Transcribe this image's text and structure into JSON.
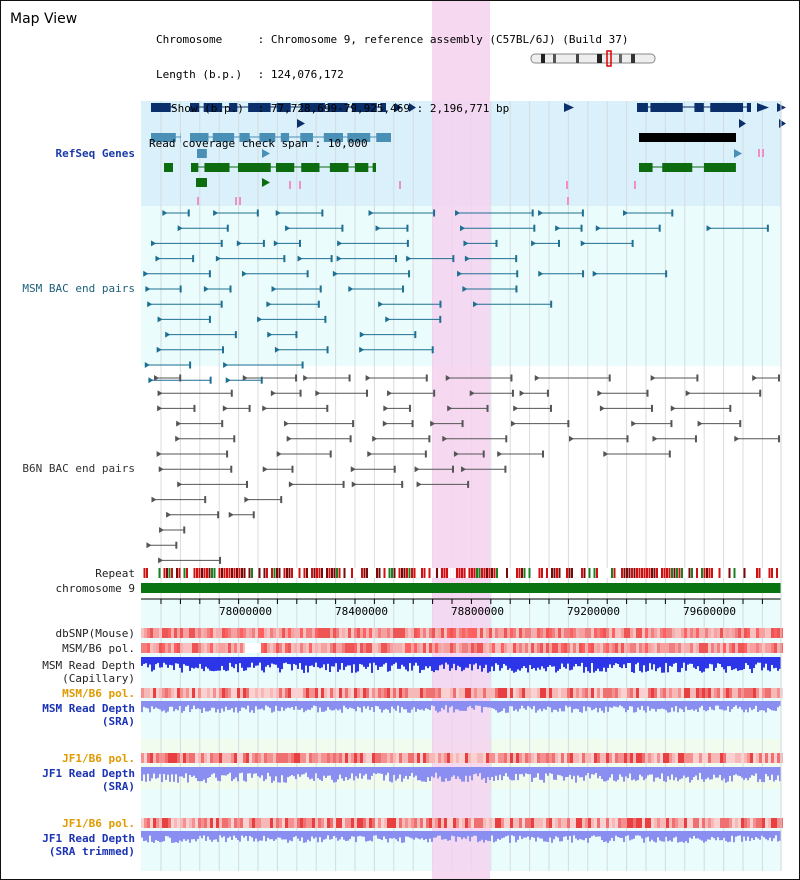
{
  "header": {
    "title": "Map View",
    "chromosome_key": "Chromosome",
    "chromosome_value": "Chromosome 9, reference assembly (C57BL/6J) (Build 37)",
    "length_key": "Length (b.p.)",
    "length_value": "124,076,172",
    "show_key": "Show (b.p.)",
    "show_value": "77,728,699-79,925,469 : 2,196,771 bp",
    "span_key": "Read coverage check span",
    "span_value": "10,000"
  },
  "tracks": {
    "refseq": "RefSeq Genes",
    "msm_bac": "MSM BAC end pairs",
    "b6n_bac": "B6N BAC end pairs",
    "repeat": "Repeat",
    "chromosome": "chromosome 9",
    "dbsnp": "dbSNP(Mouse)",
    "msm_b6_pol_1": "MSM/B6 pol.",
    "msm_read_depth_cap_1": "MSM Read Depth",
    "msm_read_depth_cap_2": "(Capillary)",
    "msm_b6_pol_2": "MSM/B6 pol.",
    "msm_read_depth_sra_1": "MSM Read Depth",
    "msm_read_depth_sra_2": "(SRA)",
    "jf1_b6_pol_1": "JF1/B6 pol.",
    "jf1_read_depth_sra_1": "JF1 Read Depth",
    "jf1_read_depth_sra_2": "(SRA)",
    "jf1_b6_pol_2": "JF1/B6 pol.",
    "jf1_read_depth_trim_1": "JF1 Read Depth",
    "jf1_read_depth_trim_2": "(SRA trimmed)"
  },
  "axis": {
    "ticks": [
      "78000000",
      "78400000",
      "78800000",
      "79200000",
      "79600000"
    ]
  },
  "colors": {
    "refseq_bg": "#daf0fa",
    "track_bg": "#eafcfc",
    "highlight": "#f5d2ef",
    "gene_dark": "#0a2f6b",
    "gene_mid": "#4a8fb5",
    "gene_green": "#0d6b10",
    "msm_pair": "#1e6f92",
    "b6n_pair": "#555555",
    "chromosome_bar": "#0a7312",
    "depth_blue": "#2d35e8",
    "depth_light": "#8a8ef0"
  }
}
